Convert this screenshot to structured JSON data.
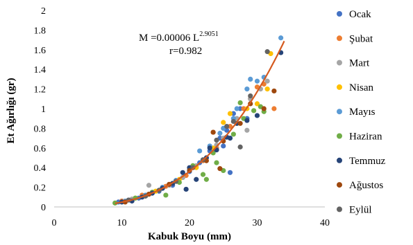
{
  "chart_data": {
    "type": "scatter",
    "xlabel": "Kabuk Boyu (mm)",
    "ylabel": "Et Ağırlığı (gr)",
    "xlim": [
      0,
      40
    ],
    "ylim": [
      0,
      2
    ],
    "x_ticks": [
      "0",
      "10",
      "20",
      "30",
      "40"
    ],
    "y_ticks": [
      "0",
      "0.2",
      "0.4",
      "0.6",
      "0.8",
      "1",
      "1.2",
      "1.4",
      "1.6",
      "1.8",
      "2"
    ],
    "grid": false,
    "legend_position": "right",
    "equation": {
      "line1_prefix": "M =0.00006  L",
      "exponent": "2.9051",
      "line2": "r=0.982"
    },
    "fit": {
      "a": 6e-05,
      "b": 2.9051,
      "x_range": [
        9,
        34
      ],
      "color": "#D55A1F"
    },
    "series": [
      {
        "name": "Ocak",
        "color": "#4472C4",
        "x": [
          9.5,
          11,
          12.5,
          14,
          16,
          18,
          20,
          21.5,
          23,
          24.5,
          25.5,
          26.5,
          27.5,
          28.5,
          22,
          19,
          25,
          15.5,
          17.5,
          26
        ],
        "y": [
          0.05,
          0.07,
          0.09,
          0.13,
          0.19,
          0.26,
          0.36,
          0.45,
          0.57,
          0.7,
          0.78,
          0.95,
          1.0,
          0.9,
          0.48,
          0.3,
          0.62,
          0.16,
          0.22,
          0.35
        ]
      },
      {
        "name": "Şubat",
        "color": "#ED7D31",
        "x": [
          10,
          13,
          16.5,
          19.5,
          22,
          24,
          26,
          28,
          30,
          31,
          32.5,
          29,
          23.5,
          20.5
        ],
        "y": [
          0.06,
          0.12,
          0.21,
          0.32,
          0.47,
          0.6,
          0.82,
          1.0,
          1.22,
          1.25,
          1.0,
          1.1,
          0.76,
          0.4
        ]
      },
      {
        "name": "Mart",
        "color": "#A5A5A5",
        "x": [
          9,
          11.5,
          14,
          17,
          19,
          22.5,
          25,
          27,
          29,
          30.5,
          31.5,
          28.5,
          24,
          21
        ],
        "y": [
          0.04,
          0.08,
          0.22,
          0.22,
          0.3,
          0.5,
          0.7,
          0.9,
          1.1,
          1.2,
          1.28,
          0.78,
          0.63,
          0.42
        ]
      },
      {
        "name": "Nisan",
        "color": "#FFC000",
        "x": [
          12,
          15,
          18.5,
          21,
          23.5,
          25,
          27,
          28.5,
          30,
          31.5,
          32,
          26
        ],
        "y": [
          0.09,
          0.16,
          0.28,
          0.4,
          0.6,
          0.86,
          0.85,
          1.0,
          1.05,
          1.2,
          1.56,
          0.95
        ]
      },
      {
        "name": "Mayıs",
        "color": "#5B9BD5",
        "x": [
          10.5,
          13.5,
          16,
          18,
          20,
          21.5,
          23,
          25,
          27,
          28.5,
          30,
          31,
          33.5,
          24.5,
          26.5,
          29
        ],
        "y": [
          0.06,
          0.12,
          0.2,
          0.27,
          0.38,
          0.57,
          0.62,
          0.8,
          1.0,
          1.2,
          1.28,
          1.32,
          1.72,
          0.75,
          0.9,
          1.3
        ]
      },
      {
        "name": "Haziran",
        "color": "#70AD47",
        "x": [
          9,
          12,
          14.5,
          16.5,
          18.5,
          20.5,
          22,
          23.5,
          25,
          26.5,
          28,
          29.5,
          30.5,
          31,
          22.5,
          24,
          27.5
        ],
        "y": [
          0.04,
          0.09,
          0.15,
          0.12,
          0.25,
          0.42,
          0.33,
          0.55,
          0.37,
          0.74,
          0.9,
          0.98,
          1.02,
          0.97,
          0.28,
          0.45,
          1.06
        ]
      },
      {
        "name": "Temmuz",
        "color": "#264478",
        "x": [
          10,
          11.5,
          13,
          14.5,
          16,
          17.5,
          19,
          20,
          21,
          22.5,
          24,
          25.5,
          27,
          28.5,
          30,
          33.5,
          19.5,
          23,
          26
        ],
        "y": [
          0.05,
          0.06,
          0.1,
          0.14,
          0.19,
          0.24,
          0.35,
          0.4,
          0.28,
          0.5,
          0.58,
          0.71,
          0.85,
          0.88,
          0.93,
          1.57,
          0.18,
          0.6,
          0.7
        ]
      },
      {
        "name": "Ağustos",
        "color": "#9E480E",
        "x": [
          10.5,
          14,
          17,
          20,
          22.5,
          25,
          27.5,
          29,
          31,
          32.5,
          24.5,
          23.5
        ],
        "y": [
          0.05,
          0.13,
          0.23,
          0.37,
          0.47,
          0.67,
          0.85,
          1.05,
          1.0,
          1.18,
          0.39,
          0.76
        ]
      },
      {
        "name": "Eylül",
        "color": "#636363",
        "x": [
          11,
          13.5,
          15.5,
          18,
          20.5,
          22,
          24,
          25.5,
          26.5,
          27.5,
          31.5,
          29
        ],
        "y": [
          0.07,
          0.11,
          0.17,
          0.26,
          0.4,
          0.48,
          0.68,
          0.82,
          0.87,
          0.61,
          1.58,
          1.13
        ]
      }
    ]
  }
}
